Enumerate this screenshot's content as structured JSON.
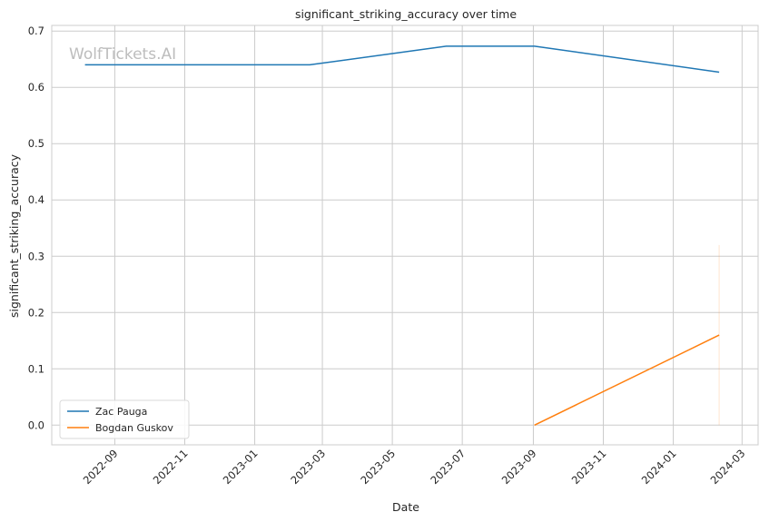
{
  "watermark": "WolfTickets.AI",
  "chart_data": {
    "type": "line",
    "title": "significant_striking_accuracy over time",
    "xlabel": "Date",
    "ylabel": "significant_striking_accuracy",
    "x_ticks": [
      "2022-09",
      "2022-11",
      "2023-01",
      "2023-03",
      "2023-05",
      "2023-07",
      "2023-09",
      "2023-11",
      "2024-01",
      "2024-03"
    ],
    "y_ticks": [
      "0.0",
      "0.1",
      "0.2",
      "0.3",
      "0.4",
      "0.5",
      "0.6",
      "0.7"
    ],
    "xlim": [
      "2022-07-08",
      "2024-03-15"
    ],
    "ylim": [
      -0.035,
      0.71
    ],
    "grid": true,
    "legend_position": "lower-left",
    "series": [
      {
        "name": "Zac Pauga",
        "color": "#1f77b4",
        "points": [
          {
            "x": "2022-08-06",
            "y": 0.64
          },
          {
            "x": "2023-02-18",
            "y": 0.64
          },
          {
            "x": "2023-06-17",
            "y": 0.673
          },
          {
            "x": "2023-09-02",
            "y": 0.673
          },
          {
            "x": "2024-02-10",
            "y": 0.627
          }
        ]
      },
      {
        "name": "Bogdan Guskov",
        "color": "#ff7f0e",
        "points": [
          {
            "x": "2023-09-02",
            "y": 0.0
          },
          {
            "x": "2024-02-10",
            "y": 0.16
          }
        ],
        "band": {
          "x": "2024-02-10",
          "low": 0.0,
          "high": 0.32
        }
      }
    ]
  }
}
